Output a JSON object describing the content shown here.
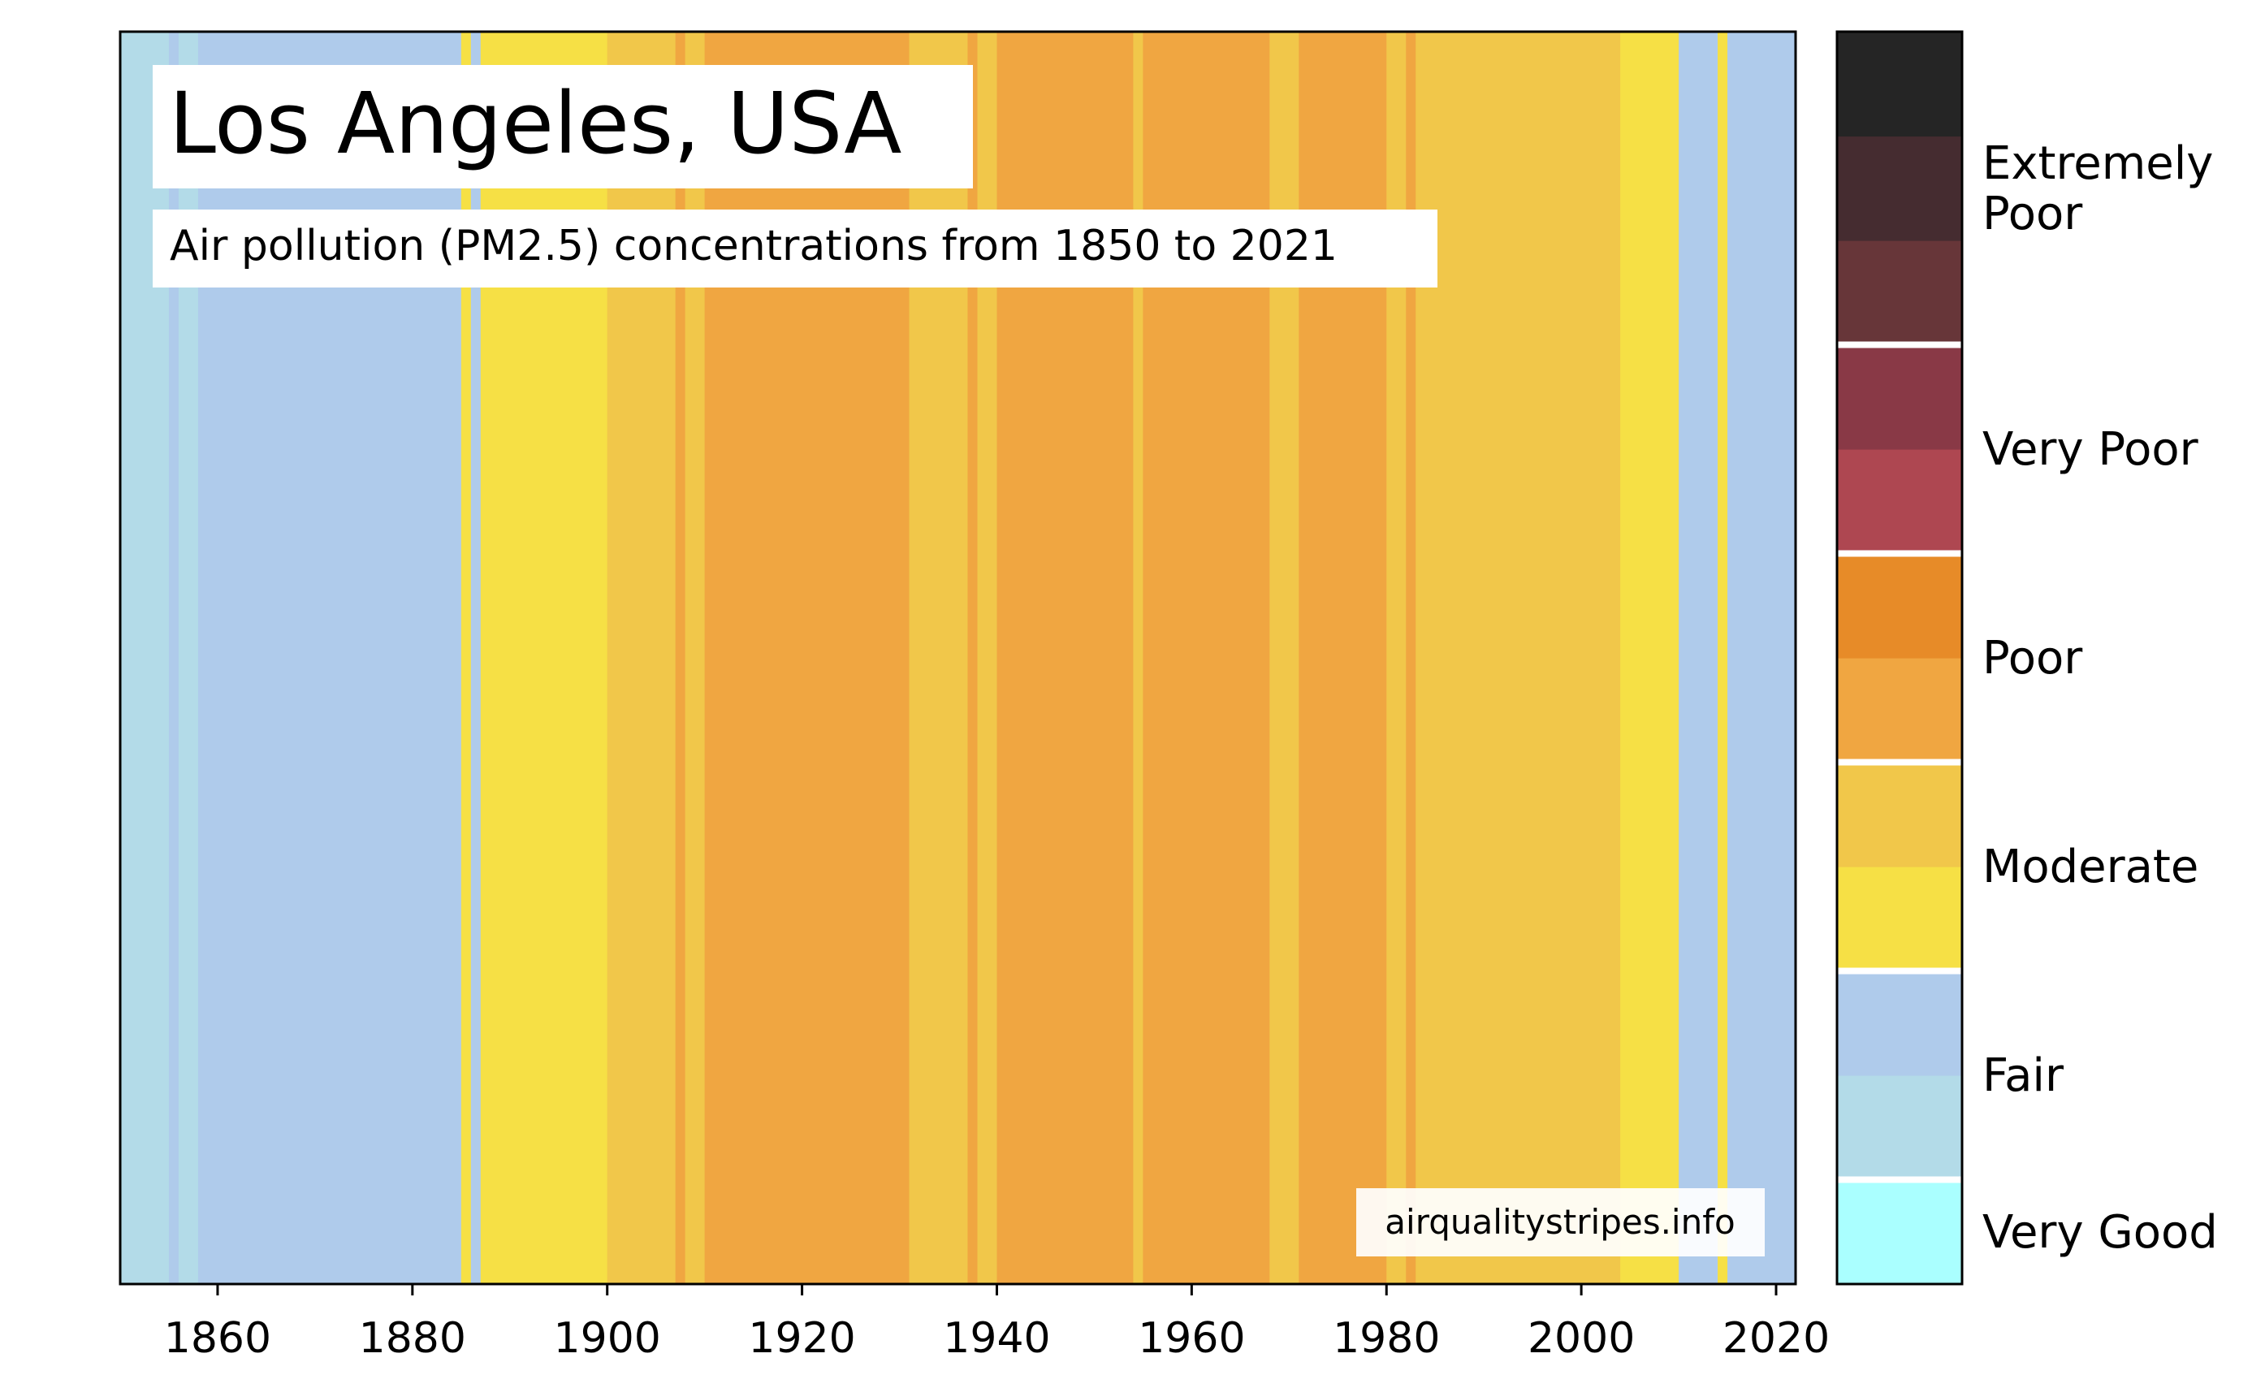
{
  "chart_data": {
    "type": "heatmap",
    "title": "Los Angeles, USA",
    "subtitle": "Air pollution (PM2.5) concentrations from 1850 to 2021",
    "watermark": "airqualitystripes.info",
    "xlabel": "",
    "ylabel": "",
    "xlim": [
      1850,
      2022
    ],
    "x_ticks": [
      1860,
      1880,
      1900,
      1920,
      1940,
      1960,
      1980,
      2000,
      2020
    ],
    "grid": false,
    "legend_position": "right",
    "stripes": [
      {
        "start": 1850,
        "end": 1855,
        "category": "Fair",
        "color": "#b3dbe8"
      },
      {
        "start": 1855,
        "end": 1856,
        "category": "Fair",
        "color": "#afcbeb"
      },
      {
        "start": 1856,
        "end": 1858,
        "category": "Fair",
        "color": "#b3dbe8"
      },
      {
        "start": 1858,
        "end": 1885,
        "category": "Fair",
        "color": "#afcbeb"
      },
      {
        "start": 1885,
        "end": 1886,
        "category": "Moderate",
        "color": "#f6e045"
      },
      {
        "start": 1886,
        "end": 1887,
        "category": "Fair",
        "color": "#afcbeb"
      },
      {
        "start": 1887,
        "end": 1900,
        "category": "Moderate",
        "color": "#f6e045"
      },
      {
        "start": 1900,
        "end": 1907,
        "category": "Moderate",
        "color": "#f1c74a"
      },
      {
        "start": 1907,
        "end": 1908,
        "category": "Poor",
        "color": "#f0a641"
      },
      {
        "start": 1908,
        "end": 1910,
        "category": "Moderate",
        "color": "#f1c74a"
      },
      {
        "start": 1910,
        "end": 1931,
        "category": "Poor",
        "color": "#f0a641"
      },
      {
        "start": 1931,
        "end": 1937,
        "category": "Moderate",
        "color": "#f1c74a"
      },
      {
        "start": 1937,
        "end": 1938,
        "category": "Poor",
        "color": "#f0a641"
      },
      {
        "start": 1938,
        "end": 1940,
        "category": "Moderate",
        "color": "#f1c74a"
      },
      {
        "start": 1940,
        "end": 1954,
        "category": "Poor",
        "color": "#f0a641"
      },
      {
        "start": 1954,
        "end": 1955,
        "category": "Moderate",
        "color": "#f1c74a"
      },
      {
        "start": 1955,
        "end": 1968,
        "category": "Poor",
        "color": "#f0a641"
      },
      {
        "start": 1968,
        "end": 1971,
        "category": "Moderate",
        "color": "#f1c74a"
      },
      {
        "start": 1971,
        "end": 1980,
        "category": "Poor",
        "color": "#f0a641"
      },
      {
        "start": 1980,
        "end": 1982,
        "category": "Moderate",
        "color": "#f1c74a"
      },
      {
        "start": 1982,
        "end": 1983,
        "category": "Poor",
        "color": "#f0a641"
      },
      {
        "start": 1983,
        "end": 2004,
        "category": "Moderate",
        "color": "#f1c74a"
      },
      {
        "start": 2004,
        "end": 2010,
        "category": "Moderate",
        "color": "#f6e045"
      },
      {
        "start": 2010,
        "end": 2014,
        "category": "Fair",
        "color": "#afcbeb"
      },
      {
        "start": 2014,
        "end": 2015,
        "category": "Moderate",
        "color": "#f6e045"
      },
      {
        "start": 2015,
        "end": 2022,
        "category": "Fair",
        "color": "#afcbeb"
      }
    ],
    "legend": [
      {
        "label": "Very Good",
        "colors": [
          "#aaffff"
        ]
      },
      {
        "label": "Fair",
        "colors": [
          "#b3dbe8",
          "#afcbeb"
        ]
      },
      {
        "label": "Moderate",
        "colors": [
          "#f6e045",
          "#f1c74a"
        ]
      },
      {
        "label": "Poor",
        "colors": [
          "#f0a641",
          "#e78b28"
        ]
      },
      {
        "label": "Very Poor",
        "colors": [
          "#ae4751",
          "#893946"
        ]
      },
      {
        "label": "Extremely Poor",
        "label_lines": [
          "Extremely",
          "Poor"
        ],
        "colors": [
          "#673639",
          "#452c30",
          "#252525"
        ]
      }
    ]
  }
}
